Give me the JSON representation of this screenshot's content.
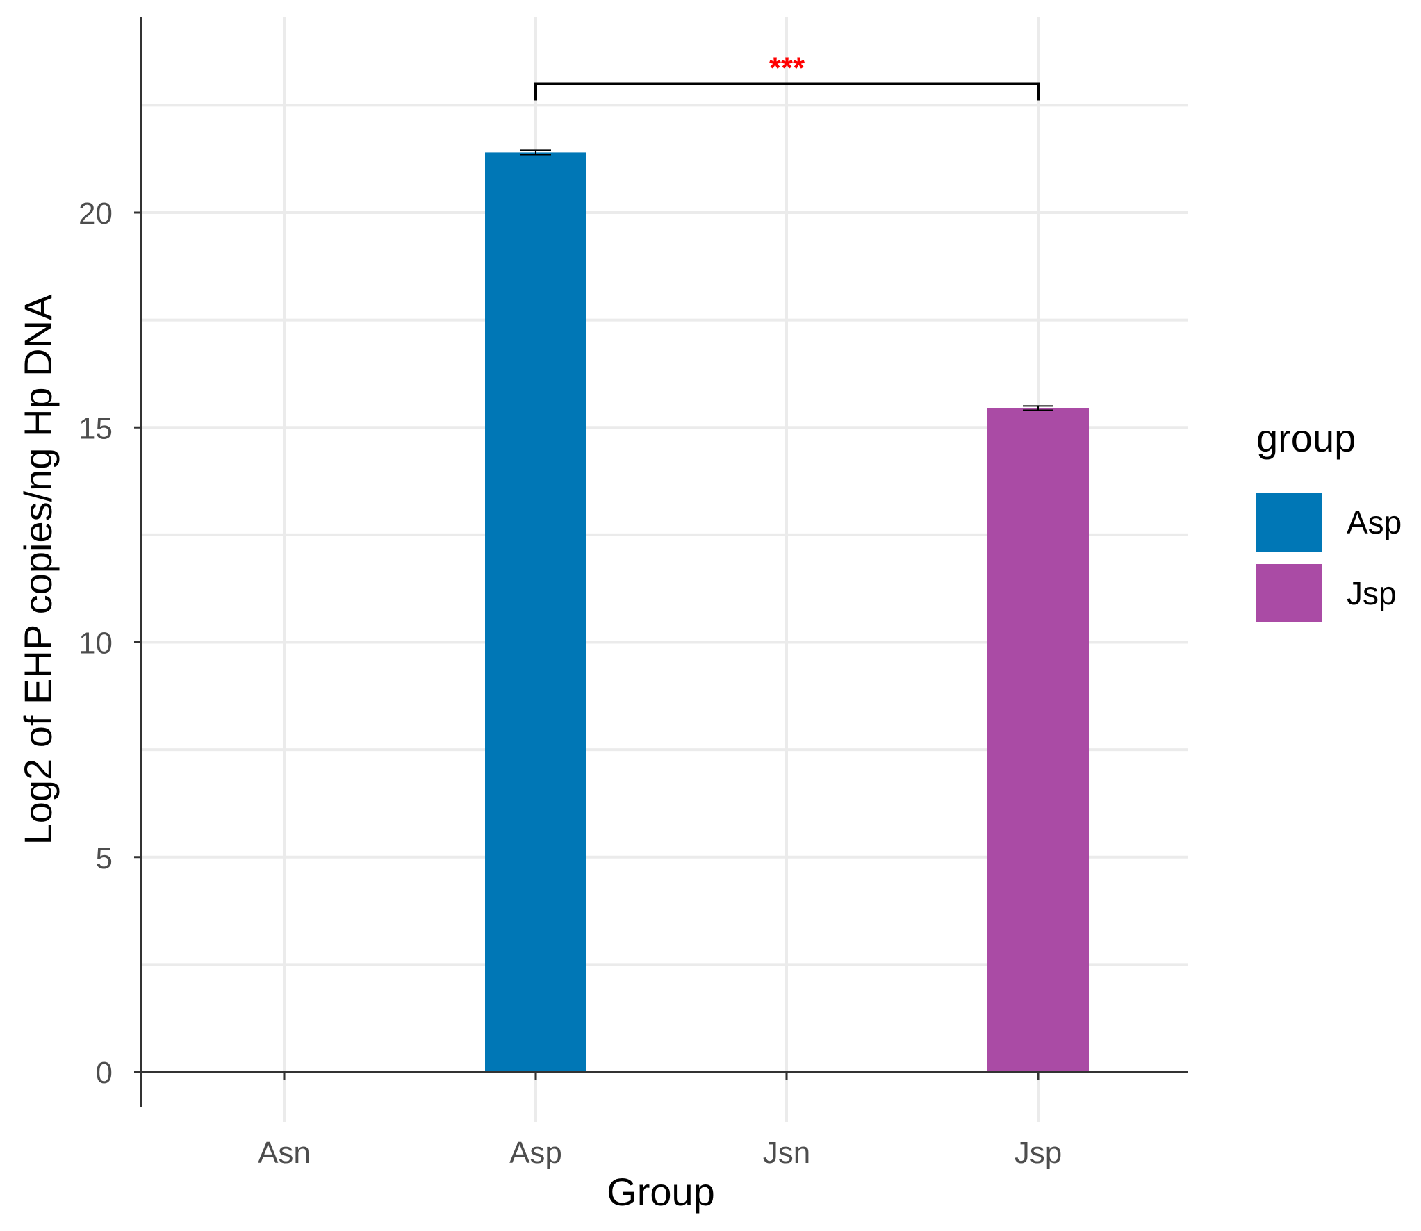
{
  "chart_data": {
    "type": "bar",
    "title": "",
    "xlabel": "Group",
    "ylabel": "Log2 of EHP copies/ng Hp DNA",
    "categories": [
      "Asn",
      "Asp",
      "Jsn",
      "Jsp"
    ],
    "values": [
      0,
      21.4,
      0,
      15.45
    ],
    "errors": [
      0,
      0.05,
      0,
      0.05
    ],
    "bar_colors": [
      "#8B3A2F",
      "#0077B6",
      "#2F6B3A",
      "#AA4BA5"
    ],
    "ylim": [
      0,
      24.5
    ],
    "yticks": [
      0,
      5,
      10,
      15,
      20
    ],
    "ytick_labels": [
      "0",
      "5",
      "10",
      "15",
      "20"
    ],
    "grid": true,
    "legend": {
      "title": "group",
      "position": "right",
      "items": [
        {
          "label": "Asp",
          "color": "#0077B6"
        },
        {
          "label": "Jsp",
          "color": "#AA4BA5"
        }
      ]
    },
    "annotations": [
      {
        "type": "significance",
        "from": "Asp",
        "to": "Jsp",
        "label": "***",
        "color": "#FF0000",
        "y": 23.0
      }
    ]
  }
}
